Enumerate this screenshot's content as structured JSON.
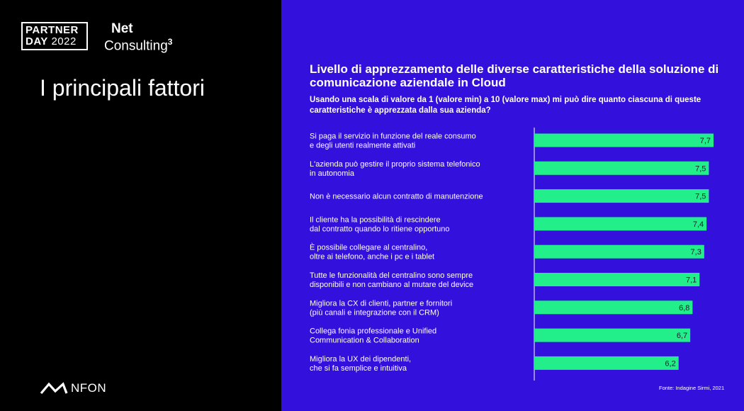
{
  "logos": {
    "partner_line1": "PARTNER",
    "partner_line2a": "DAY",
    "partner_line2b": "2022",
    "net": "Net",
    "consulting": "Consulting",
    "consulting_sup": "3",
    "nfon": "NFON"
  },
  "left_title": "I principali fattori",
  "chart_data": {
    "type": "bar",
    "orientation": "horizontal",
    "title": "Livello di apprezzamento delle diverse caratteristiche della soluzione di comunicazione aziendale in Cloud",
    "subtitle": "Usando una scala di valore da 1 (valore min) a 10 (valore max) mi può dire quanto ciascuna di queste caratteristiche è apprezzata dalla sua azienda?",
    "categories": [
      [
        "Si paga il servizio in funzione del reale consumo",
        "e degli utenti realmente attivati"
      ],
      [
        "L'azienda può gestire il proprio sistema telefonico",
        "in autonomia"
      ],
      [
        "Non è necessario alcun contratto di manutenzione"
      ],
      [
        "Il cliente ha la possibilità di rescindere",
        "dal contratto quando lo ritiene opportuno"
      ],
      [
        "È possibile collegare al centralino,",
        "oltre ai telefono, anche i pc e i tablet"
      ],
      [
        "Tutte le funzionalità del centralino sono sempre",
        "disponibili e non cambiano al mutare del device"
      ],
      [
        "Migliora la CX di clienti, partner e fornitori",
        "(più canali e integrazione con il CRM)"
      ],
      [
        "Collega fonia professionale e Unified",
        "Communication & Collaboration"
      ],
      [
        "Migliora la UX dei dipendenti,",
        "che si fa semplice e intuitiva"
      ]
    ],
    "values": [
      7.7,
      7.5,
      7.5,
      7.4,
      7.3,
      7.1,
      6.8,
      6.7,
      6.2
    ],
    "value_labels": [
      "7,7",
      "7,5",
      "7,5",
      "7,4",
      "7,3",
      "7,1",
      "6,8",
      "6,7",
      "6,2"
    ],
    "xlim": [
      0,
      7.7
    ],
    "bar_color": "#22ee8a",
    "label_color": "#ffffff",
    "value_label_color": "#1a1a2e",
    "axis_line_color": "#ffffff"
  },
  "source": "Fonte: Indagine Sirmi, 2021",
  "colors": {
    "left_bg": "#000000",
    "right_bg": "#3410dc"
  }
}
